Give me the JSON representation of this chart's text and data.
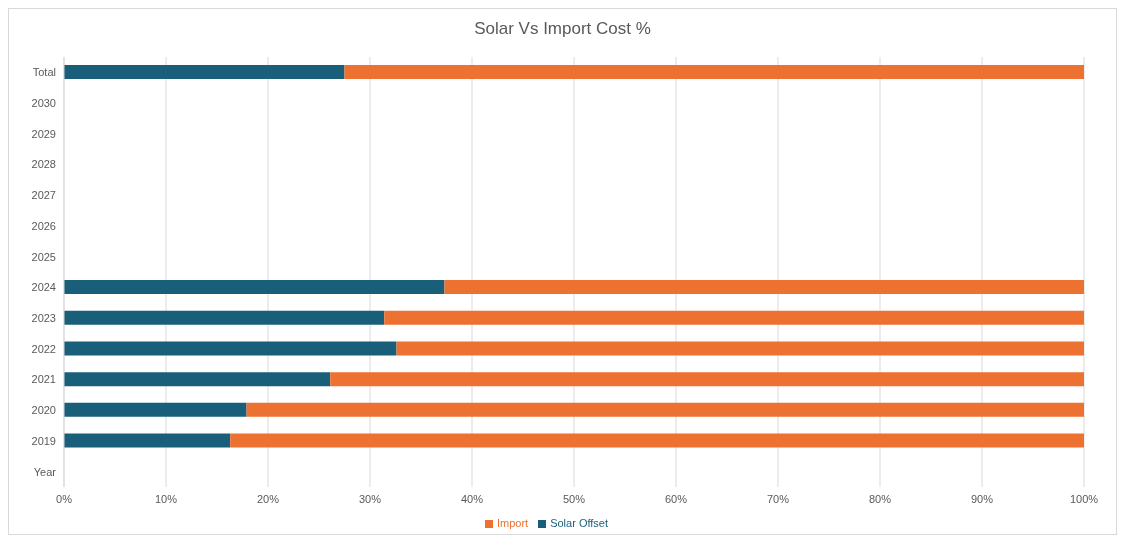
{
  "chart_data": {
    "type": "bar",
    "title": "Solar Vs Import Cost %",
    "orientation": "horizontal",
    "stacked": true,
    "categories": [
      "Total",
      "2030",
      "2029",
      "2028",
      "2027",
      "2026",
      "2025",
      "2024",
      "2023",
      "2022",
      "2021",
      "2020",
      "2019",
      "Year"
    ],
    "series": [
      {
        "name": "Solar Offset",
        "color": "#1a5f7a",
        "values": [
          27.5,
          0,
          0,
          0,
          0,
          0,
          0,
          37.3,
          31.4,
          32.6,
          26.1,
          17.9,
          16.3,
          0
        ]
      },
      {
        "name": "Import",
        "color": "#ed7130",
        "values": [
          72.5,
          0,
          0,
          0,
          0,
          0,
          0,
          62.7,
          68.6,
          67.4,
          73.9,
          82.1,
          83.7,
          0
        ]
      }
    ],
    "xlim": [
      0,
      100
    ],
    "xticks": [
      {
        "value": 0,
        "label": "0%"
      },
      {
        "value": 10,
        "label": "10%"
      },
      {
        "value": 20,
        "label": "20%"
      },
      {
        "value": 30,
        "label": "30%"
      },
      {
        "value": 40,
        "label": "40%"
      },
      {
        "value": 50,
        "label": "50%"
      },
      {
        "value": 60,
        "label": "60%"
      },
      {
        "value": 70,
        "label": "70%"
      },
      {
        "value": 80,
        "label": "80%"
      },
      {
        "value": 90,
        "label": "90%"
      },
      {
        "value": 100,
        "label": "100%"
      }
    ],
    "grid": "x",
    "legend": "bottom"
  }
}
